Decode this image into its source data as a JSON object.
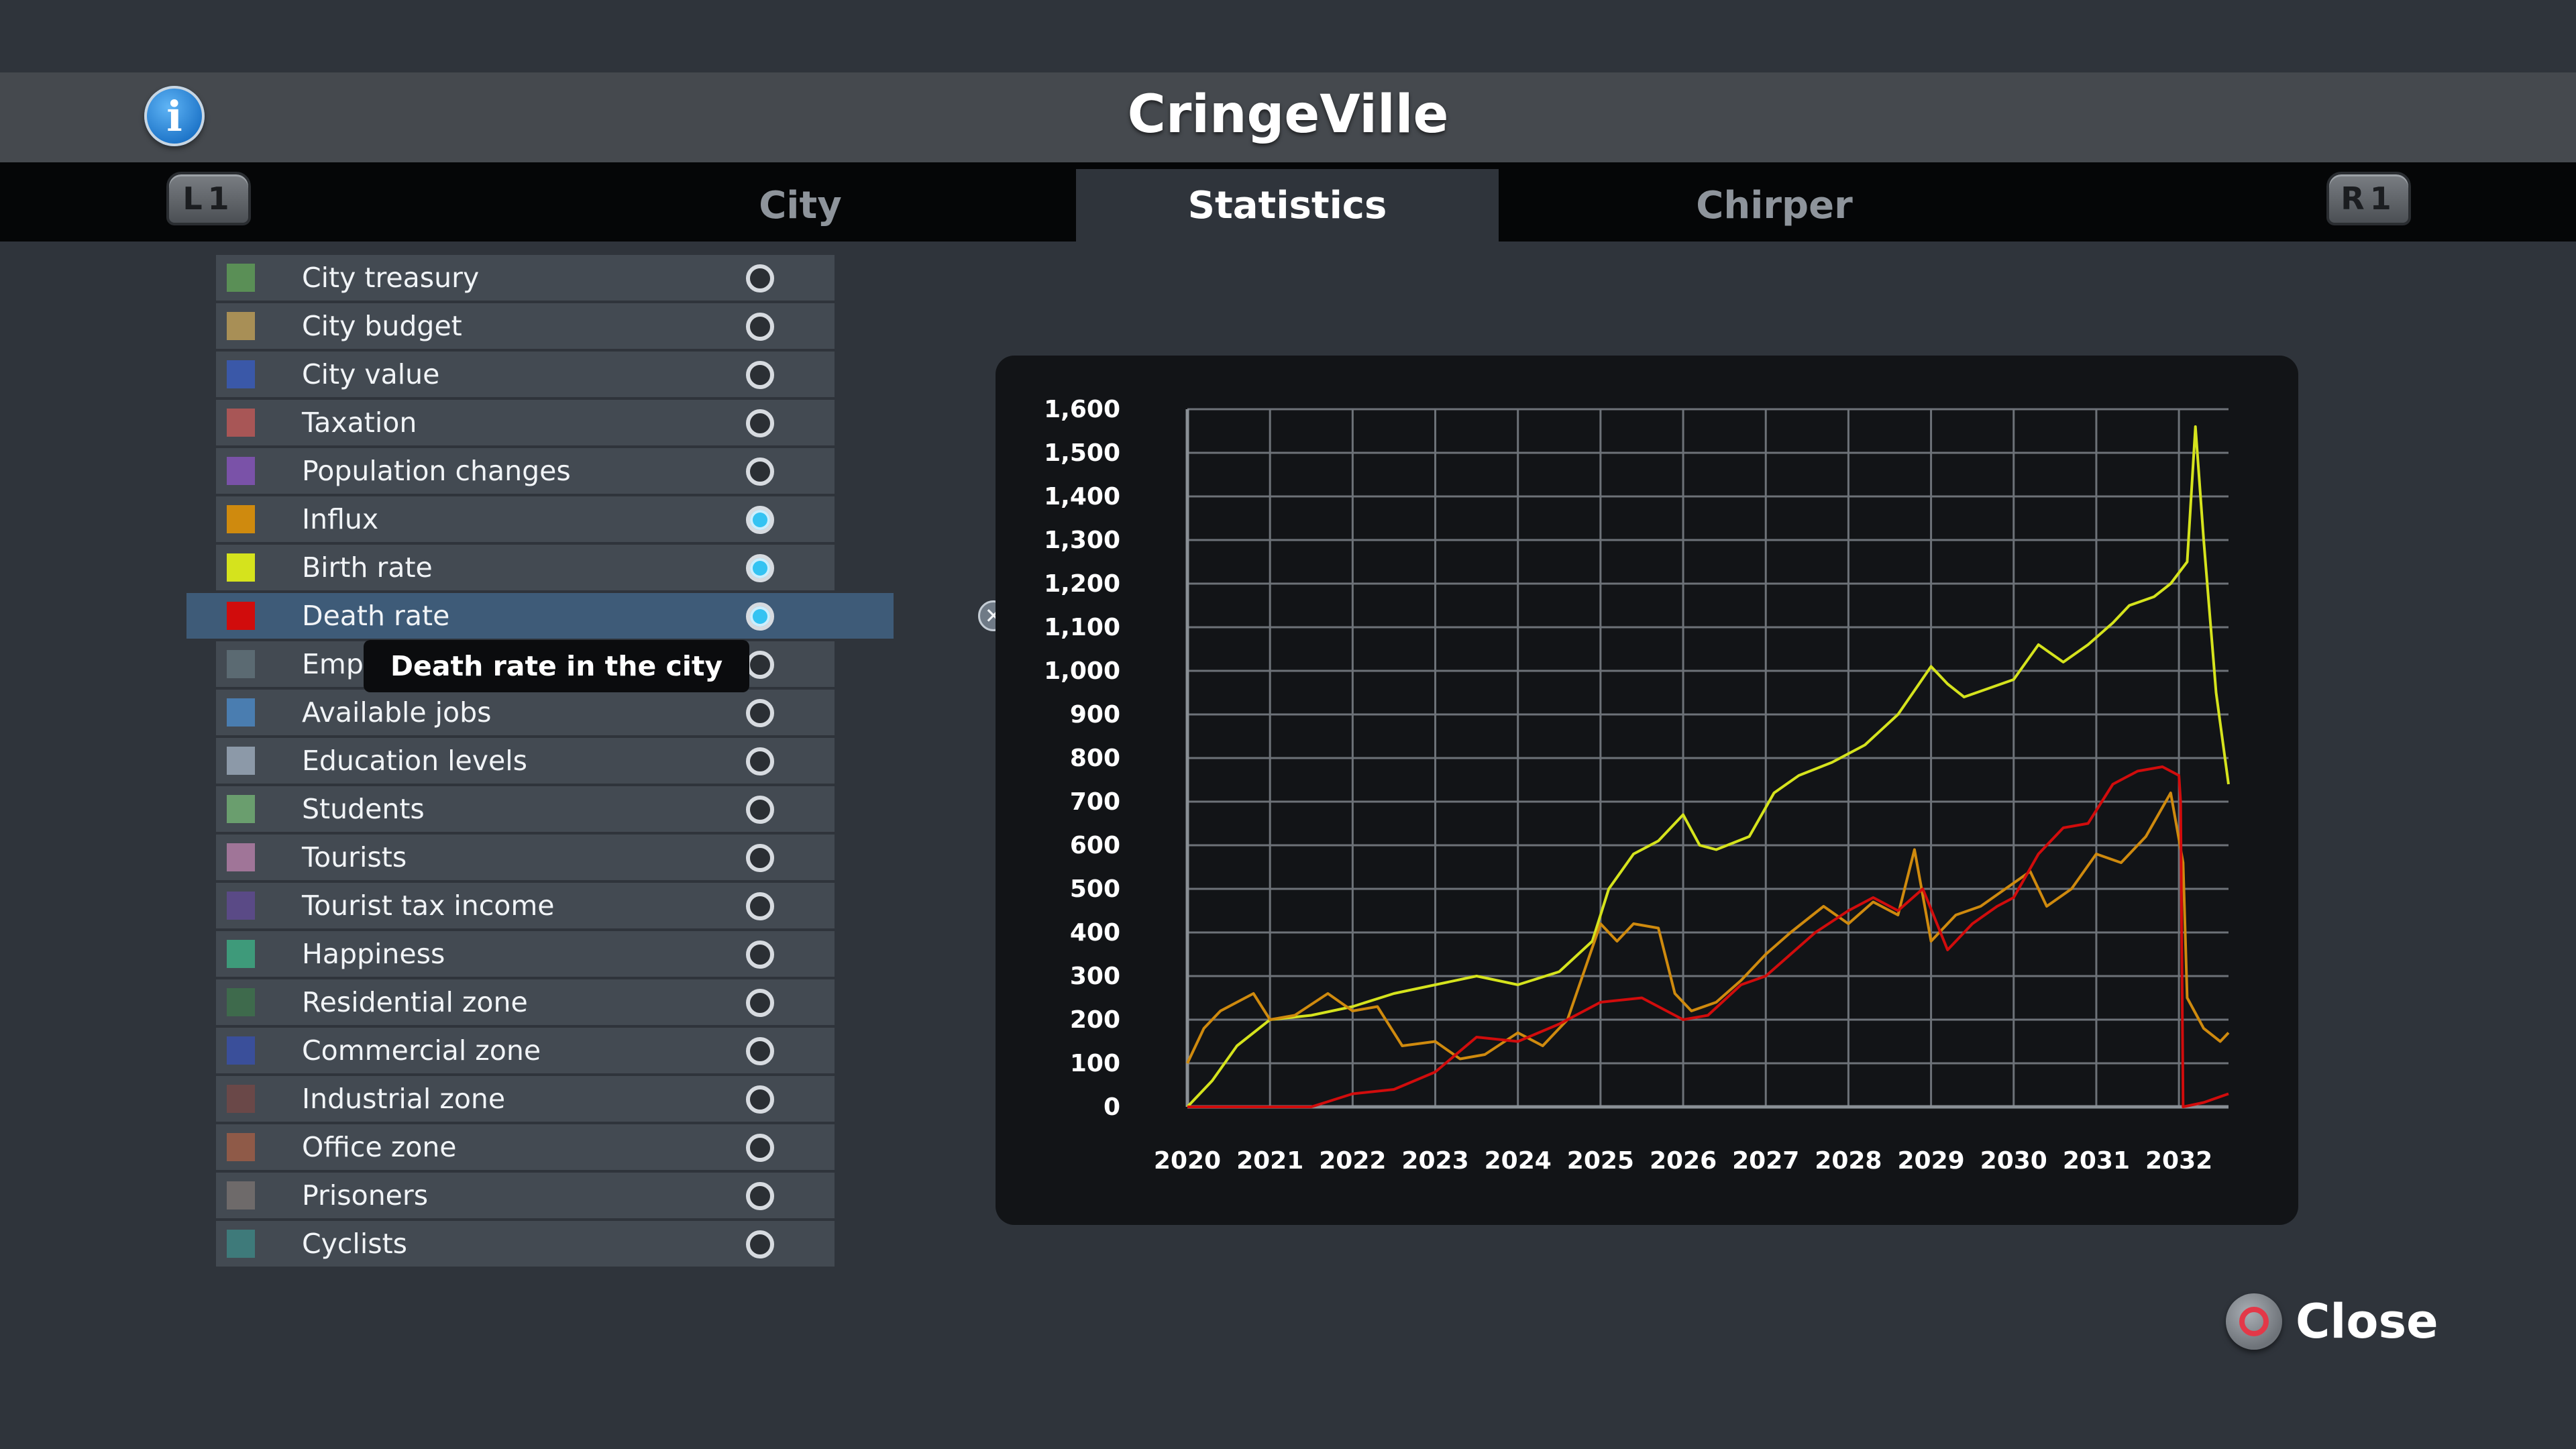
{
  "header": {
    "title": "CringeVille",
    "info_icon": "info-icon"
  },
  "tabs": [
    {
      "label": "City",
      "active": false
    },
    {
      "label": "Statistics",
      "active": true
    },
    {
      "label": "Chirper",
      "active": false
    }
  ],
  "shoulders": {
    "left": "L1",
    "right": "R1"
  },
  "stats": [
    {
      "label": "City treasury",
      "color": "#5a8f56",
      "on": false
    },
    {
      "label": "City budget",
      "color": "#a88f56",
      "on": false
    },
    {
      "label": "City value",
      "color": "#3a58a8",
      "on": false
    },
    {
      "label": "Taxation",
      "color": "#a85656",
      "on": false
    },
    {
      "label": "Population changes",
      "color": "#7a52a8",
      "on": false
    },
    {
      "label": "Influx",
      "color": "#cf8a0e",
      "on": true
    },
    {
      "label": "Birth rate",
      "color": "#d5e31d",
      "on": true
    },
    {
      "label": "Death rate",
      "color": "#d10c0c",
      "on": true,
      "selected": true
    },
    {
      "label": "Employment",
      "color": "#5b6a72",
      "on": false
    },
    {
      "label": "Available jobs",
      "color": "#4a7db0",
      "on": false
    },
    {
      "label": "Education levels",
      "color": "#8c99a8",
      "on": false
    },
    {
      "label": "Students",
      "color": "#6a9e6e",
      "on": false
    },
    {
      "label": "Tourists",
      "color": "#a07598",
      "on": false
    },
    {
      "label": "Tourist tax income",
      "color": "#5a4a86",
      "on": false
    },
    {
      "label": "Happiness",
      "color": "#3e9a7a",
      "on": false
    },
    {
      "label": "Residential zone",
      "color": "#3e6a4c",
      "on": false
    },
    {
      "label": "Commercial zone",
      "color": "#3a4f9a",
      "on": false
    },
    {
      "label": "Industrial zone",
      "color": "#6a4848",
      "on": false
    },
    {
      "label": "Office zone",
      "color": "#8f5a48",
      "on": false
    },
    {
      "label": "Prisoners",
      "color": "#6e6a6a",
      "on": false
    },
    {
      "label": "Cyclists",
      "color": "#3e7a7a",
      "on": false
    }
  ],
  "tooltip": "Death rate in the city",
  "close": {
    "label": "Close"
  },
  "chart_data": {
    "type": "line",
    "title": "",
    "xlabel": "",
    "ylabel": "",
    "ylim": [
      0,
      1600
    ],
    "xlim": [
      2020,
      2032.6
    ],
    "grid": true,
    "yticks": [
      "0",
      "100",
      "200",
      "300",
      "400",
      "500",
      "600",
      "700",
      "800",
      "900",
      "1,000",
      "1,100",
      "1,200",
      "1,300",
      "1,400",
      "1,500",
      "1,600"
    ],
    "xticks": [
      "2020",
      "2021",
      "2022",
      "2023",
      "2024",
      "2025",
      "2026",
      "2027",
      "2028",
      "2029",
      "2030",
      "2031",
      "2032"
    ],
    "series": [
      {
        "color": "#d5e31d",
        "x": [
          2020,
          2020.3,
          2020.6,
          2021,
          2021.5,
          2022,
          2022.5,
          2023,
          2023.5,
          2024,
          2024.5,
          2024.9,
          2025.1,
          2025.4,
          2025.7,
          2026,
          2026.2,
          2026.4,
          2026.8,
          2027.1,
          2027.4,
          2027.8,
          2028.2,
          2028.6,
          2029,
          2029.2,
          2029.4,
          2029.7,
          2030,
          2030.3,
          2030.6,
          2030.9,
          2031.2,
          2031.4,
          2031.7,
          2031.9,
          2032.1,
          2032.2,
          2032.3,
          2032.45,
          2032.6
        ],
        "y": [
          0,
          60,
          140,
          200,
          210,
          230,
          260,
          280,
          300,
          280,
          310,
          380,
          500,
          580,
          610,
          670,
          600,
          590,
          620,
          720,
          760,
          790,
          830,
          900,
          1010,
          970,
          940,
          960,
          980,
          1060,
          1020,
          1060,
          1110,
          1150,
          1170,
          1200,
          1250,
          1560,
          1300,
          950,
          740
        ]
      },
      {
        "color": "#cf8a0e",
        "x": [
          2020,
          2020.2,
          2020.4,
          2020.8,
          2021,
          2021.3,
          2021.7,
          2022,
          2022.3,
          2022.6,
          2023,
          2023.3,
          2023.6,
          2024,
          2024.3,
          2024.6,
          2025,
          2025.2,
          2025.4,
          2025.7,
          2025.9,
          2026.1,
          2026.4,
          2026.7,
          2027,
          2027.3,
          2027.7,
          2028,
          2028.3,
          2028.6,
          2028.8,
          2029,
          2029.3,
          2029.6,
          2029.9,
          2030.2,
          2030.4,
          2030.7,
          2031,
          2031.3,
          2031.6,
          2031.9,
          2032.05,
          2032.1,
          2032.3,
          2032.5,
          2032.6
        ],
        "y": [
          100,
          180,
          220,
          260,
          200,
          210,
          260,
          220,
          230,
          140,
          150,
          110,
          120,
          170,
          140,
          200,
          420,
          380,
          420,
          410,
          260,
          220,
          240,
          290,
          350,
          400,
          460,
          420,
          470,
          440,
          590,
          380,
          440,
          460,
          500,
          540,
          460,
          500,
          580,
          560,
          620,
          720,
          560,
          250,
          180,
          150,
          170
        ]
      },
      {
        "color": "#d10c0c",
        "x": [
          2020,
          2020.5,
          2021,
          2021.5,
          2022,
          2022.5,
          2023,
          2023.5,
          2024,
          2024.5,
          2025,
          2025.5,
          2026,
          2026.3,
          2026.7,
          2027,
          2027.3,
          2027.6,
          2028,
          2028.3,
          2028.6,
          2028.9,
          2029.2,
          2029.5,
          2029.8,
          2030,
          2030.3,
          2030.6,
          2030.9,
          2031.2,
          2031.5,
          2031.8,
          2032,
          2032.02,
          2032.05,
          2032.3,
          2032.6
        ],
        "y": [
          0,
          0,
          0,
          0,
          30,
          40,
          80,
          160,
          150,
          190,
          240,
          250,
          200,
          210,
          280,
          300,
          350,
          400,
          450,
          480,
          450,
          500,
          360,
          420,
          460,
          480,
          580,
          640,
          650,
          740,
          770,
          780,
          760,
          700,
          0,
          10,
          30
        ]
      }
    ]
  }
}
